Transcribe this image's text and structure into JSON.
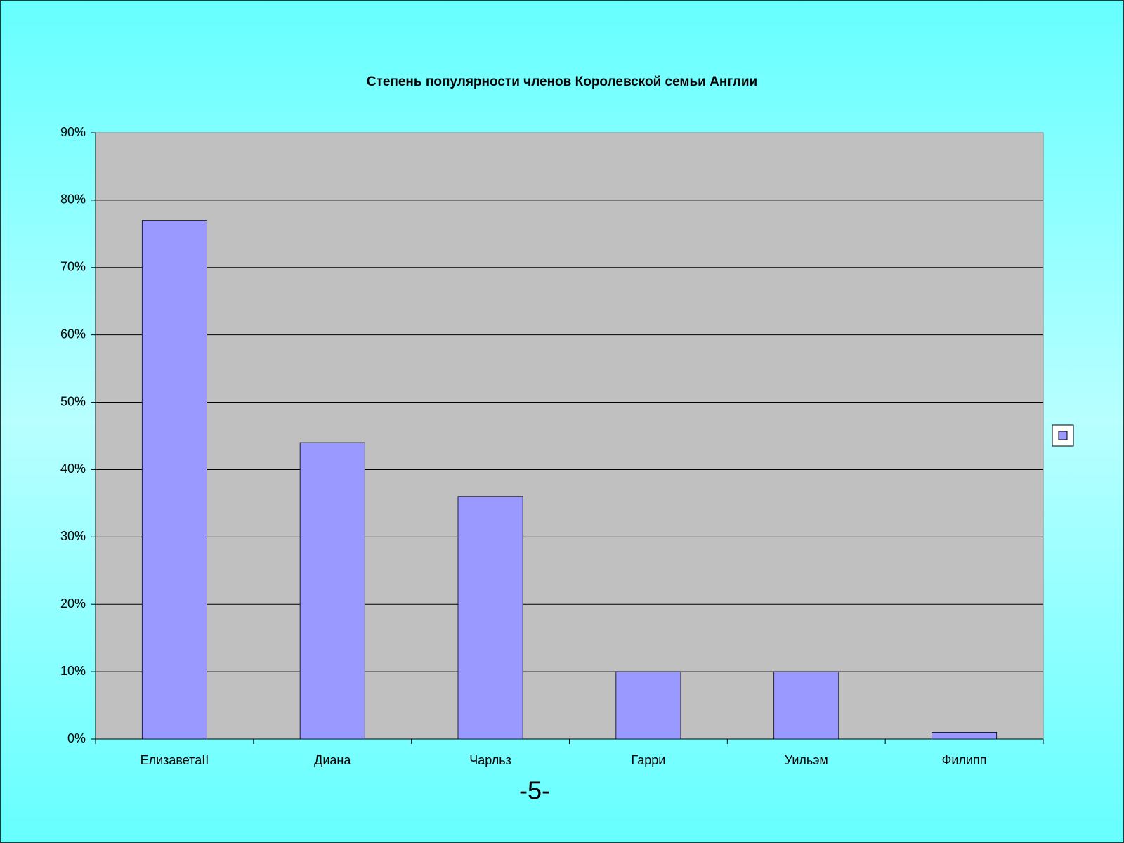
{
  "chart_data": {
    "type": "bar",
    "title": "Степень популярности членов Королевской семьи Англии",
    "categories": [
      "ЕлизаветаII",
      "Диана",
      "Чарльз",
      "Гарри",
      "Уильэм",
      "Филипп"
    ],
    "values": [
      77,
      44,
      36,
      10,
      10,
      1
    ],
    "color": "#9999ff",
    "ylim": [
      0,
      90
    ],
    "yticks": [
      {
        "value": 0,
        "label": "0%"
      },
      {
        "value": 10,
        "label": "10%"
      },
      {
        "value": 20,
        "label": "20%"
      },
      {
        "value": 30,
        "label": "30%"
      },
      {
        "value": 40,
        "label": "40%"
      },
      {
        "value": 50,
        "label": "50%"
      },
      {
        "value": 60,
        "label": "60%"
      },
      {
        "value": 70,
        "label": "70%"
      },
      {
        "value": 80,
        "label": "80%"
      },
      {
        "value": 90,
        "label": "90%"
      }
    ],
    "grid": true,
    "legend": "right"
  },
  "footer": "-5-"
}
